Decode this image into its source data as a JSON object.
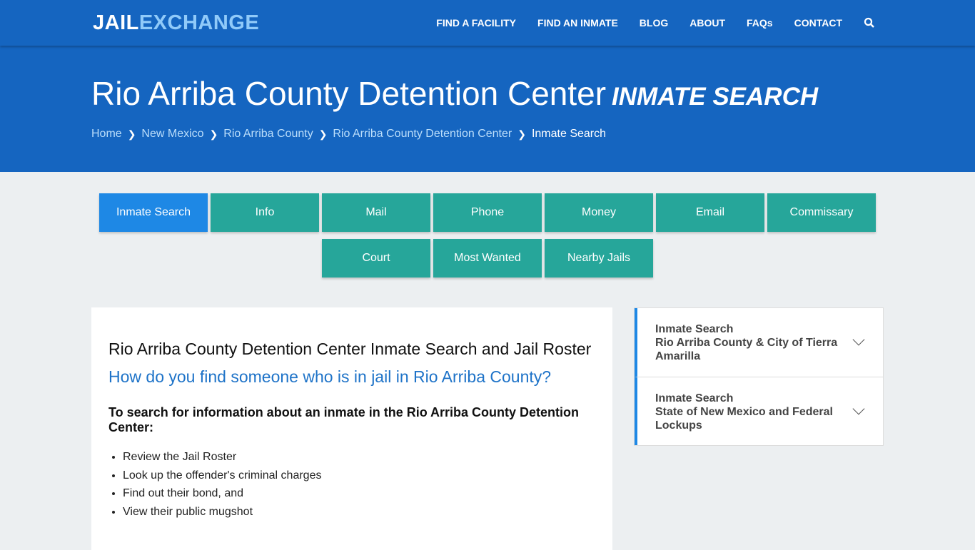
{
  "logo": {
    "part1": "JAIL",
    "part2": "EXCHANGE"
  },
  "nav": [
    "FIND A FACILITY",
    "FIND AN INMATE",
    "BLOG",
    "ABOUT",
    "FAQs",
    "CONTACT"
  ],
  "hero": {
    "title": "Rio Arriba County Detention Center",
    "subtitle": "INMATE SEARCH"
  },
  "breadcrumb": [
    "Home",
    "New Mexico",
    "Rio Arriba County",
    "Rio Arriba County Detention Center",
    "Inmate Search"
  ],
  "buttons_row1": [
    "Inmate Search",
    "Info",
    "Mail",
    "Phone",
    "Money",
    "Email",
    "Commissary"
  ],
  "buttons_row2": [
    "Court",
    "Most Wanted",
    "Nearby Jails"
  ],
  "main": {
    "heading": "Rio Arriba County Detention Center Inmate Search and Jail Roster",
    "question": "How do you find someone who is in jail in Rio Arriba County?",
    "intro": "To search for information about an inmate in the Rio Arriba County Detention Center:",
    "list": [
      "Review the Jail Roster",
      "Look up the offender's criminal charges",
      "Find out their bond, and",
      "View their public mugshot"
    ]
  },
  "sidebar": [
    {
      "title": "Inmate Search",
      "sub": "Rio Arriba County & City of Tierra Amarilla"
    },
    {
      "title": "Inmate Search",
      "sub": "State of New Mexico and Federal Lockups"
    }
  ]
}
